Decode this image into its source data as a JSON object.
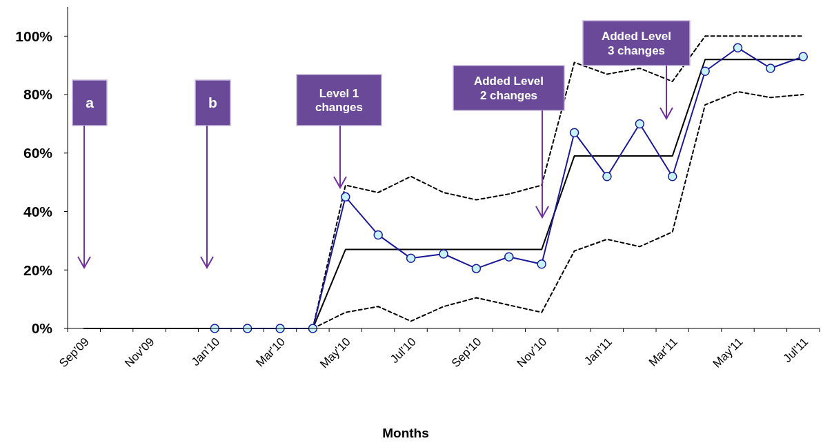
{
  "chart_data": {
    "type": "line",
    "xlabel": "Months",
    "categories": [
      "Sep'09",
      null,
      "Nov'09",
      null,
      "Jan'10",
      null,
      "Mar'10",
      null,
      "May'10",
      null,
      "Jul'10",
      null,
      "Sep'10",
      null,
      "Nov'10",
      null,
      "Jan'11",
      null,
      "Mar'11",
      null,
      "May'11",
      null,
      "Jul'11"
    ],
    "series": [
      {
        "type": "line",
        "color": "#000000",
        "line_style": "dashed",
        "marker": "none",
        "values": [
          null,
          null,
          null,
          null,
          null,
          null,
          null,
          0,
          49,
          46.5,
          52,
          46.5,
          44,
          46,
          49,
          91,
          87,
          89,
          84.5,
          100,
          100,
          100,
          100
        ]
      },
      {
        "type": "line",
        "color": "#000000",
        "line_style": "dashed",
        "marker": "none",
        "values": [
          null,
          null,
          null,
          null,
          null,
          null,
          null,
          0,
          5.5,
          7.5,
          2.5,
          7.5,
          10.5,
          8,
          5.5,
          26.5,
          30.5,
          28,
          33,
          76.5,
          81,
          79,
          80
        ]
      },
      {
        "type": "line",
        "color": "#000000",
        "line_style": "solid",
        "marker": "none",
        "values": [
          0,
          0,
          0,
          0,
          0,
          0,
          0,
          0,
          27,
          27,
          27,
          27,
          27,
          27,
          27,
          59,
          59,
          59,
          59,
          92,
          92,
          92,
          92
        ]
      },
      {
        "type": "line",
        "color": "#1a1a99",
        "line_style": "solid",
        "marker": "circle",
        "values": [
          null,
          null,
          null,
          null,
          0,
          0,
          0,
          0,
          45,
          32,
          24,
          25.5,
          20.5,
          24.5,
          22,
          67,
          52,
          70,
          52,
          88,
          96,
          89,
          93
        ]
      }
    ],
    "ylim": [
      0,
      110
    ],
    "yticks": [
      {
        "value": 0,
        "label": "0%"
      },
      {
        "value": 20,
        "label": "20%"
      },
      {
        "value": 40,
        "label": "40%"
      },
      {
        "value": 60,
        "label": "60%"
      },
      {
        "value": 80,
        "label": "80%"
      },
      {
        "value": 100,
        "label": "100%"
      }
    ],
    "grid": false,
    "annotations": [
      "a",
      "b",
      "Level 1 changes",
      "Added Level 2 changes",
      "Added Level 3 changes"
    ]
  }
}
